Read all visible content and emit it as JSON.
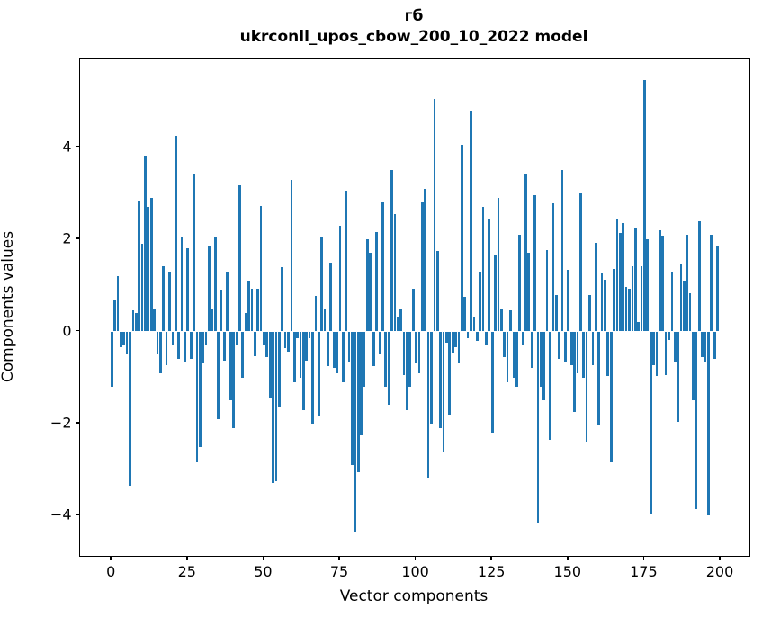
{
  "chart_data": {
    "type": "bar",
    "title": "гб",
    "subtitle": "ukrconll_upos_cbow_200_10_2022 model",
    "xlabel": "Vector components",
    "ylabel": "Components values",
    "n_components": 200,
    "x_start": 0,
    "xticks": [
      0,
      25,
      50,
      75,
      100,
      125,
      150,
      175,
      200
    ],
    "yticks": [
      -4,
      -2,
      0,
      2,
      4
    ],
    "ylim": [
      -4.84,
      5.94
    ],
    "xlim": [
      -10.4,
      209.4
    ],
    "grid": false,
    "legend": "none",
    "bar_color": "#1f77b4",
    "values": [
      -1.2,
      0.7,
      1.2,
      -0.35,
      -0.3,
      -0.5,
      -3.35,
      0.45,
      0.4,
      2.85,
      1.9,
      3.8,
      2.7,
      2.9,
      0.5,
      -0.5,
      -0.9,
      1.42,
      -0.73,
      1.3,
      -0.3,
      4.25,
      -0.6,
      2.05,
      -0.65,
      1.8,
      -0.6,
      3.4,
      -2.85,
      -2.5,
      -0.7,
      -0.3,
      1.87,
      0.5,
      2.05,
      -1.9,
      0.9,
      -0.63,
      1.3,
      -1.5,
      -2.1,
      -0.3,
      3.18,
      -1.0,
      0.4,
      1.1,
      0.93,
      -0.53,
      0.93,
      2.72,
      -0.3,
      -0.55,
      -1.45,
      -3.3,
      -3.25,
      -1.65,
      1.4,
      -0.37,
      -0.44,
      3.3,
      -1.1,
      -0.15,
      -1.0,
      -1.7,
      -0.63,
      -0.15,
      -2.0,
      0.77,
      -1.85,
      2.05,
      0.5,
      -0.75,
      1.5,
      -0.8,
      -0.9,
      2.3,
      -1.1,
      3.05,
      -0.65,
      -2.9,
      -4.35,
      -3.05,
      -2.25,
      -1.2,
      2.0,
      1.7,
      -0.75,
      2.15,
      -0.5,
      2.8,
      -1.2,
      -1.6,
      3.5,
      2.55,
      0.3,
      0.5,
      -0.95,
      -1.7,
      -1.2,
      0.93,
      -0.7,
      -0.9,
      2.8,
      3.1,
      -3.2,
      -2.0,
      5.05,
      1.74,
      -2.1,
      -2.6,
      -0.25,
      -1.8,
      -0.45,
      -0.35,
      -0.7,
      4.05,
      0.75,
      -0.15,
      4.8,
      0.3,
      -0.2,
      1.3,
      2.7,
      -0.3,
      2.45,
      -2.2,
      1.65,
      2.9,
      0.5,
      -0.55,
      -1.1,
      0.45,
      -1.0,
      -1.2,
      2.1,
      -0.3,
      3.43,
      1.7,
      -0.8,
      2.95,
      -4.15,
      -1.2,
      -1.5,
      1.76,
      -2.35,
      2.78,
      0.8,
      -0.6,
      3.5,
      -0.65,
      1.34,
      -0.73,
      -1.74,
      -0.9,
      3.0,
      -1.0,
      -2.39,
      0.8,
      -0.73,
      1.93,
      -2.03,
      1.28,
      1.13,
      -0.96,
      -2.85,
      1.35,
      2.43,
      2.14,
      2.35,
      0.96,
      0.93,
      1.42,
      2.25,
      0.2,
      1.42,
      5.45,
      2.0,
      -3.95,
      -0.73,
      -0.96,
      2.2,
      2.08,
      -0.95,
      -0.18,
      1.3,
      -0.67,
      -1.97,
      1.45,
      1.11,
      2.1,
      0.83,
      -1.5,
      -3.85,
      2.4,
      -0.55,
      -0.65,
      -4.0,
      2.1,
      -0.6,
      1.85
    ]
  }
}
